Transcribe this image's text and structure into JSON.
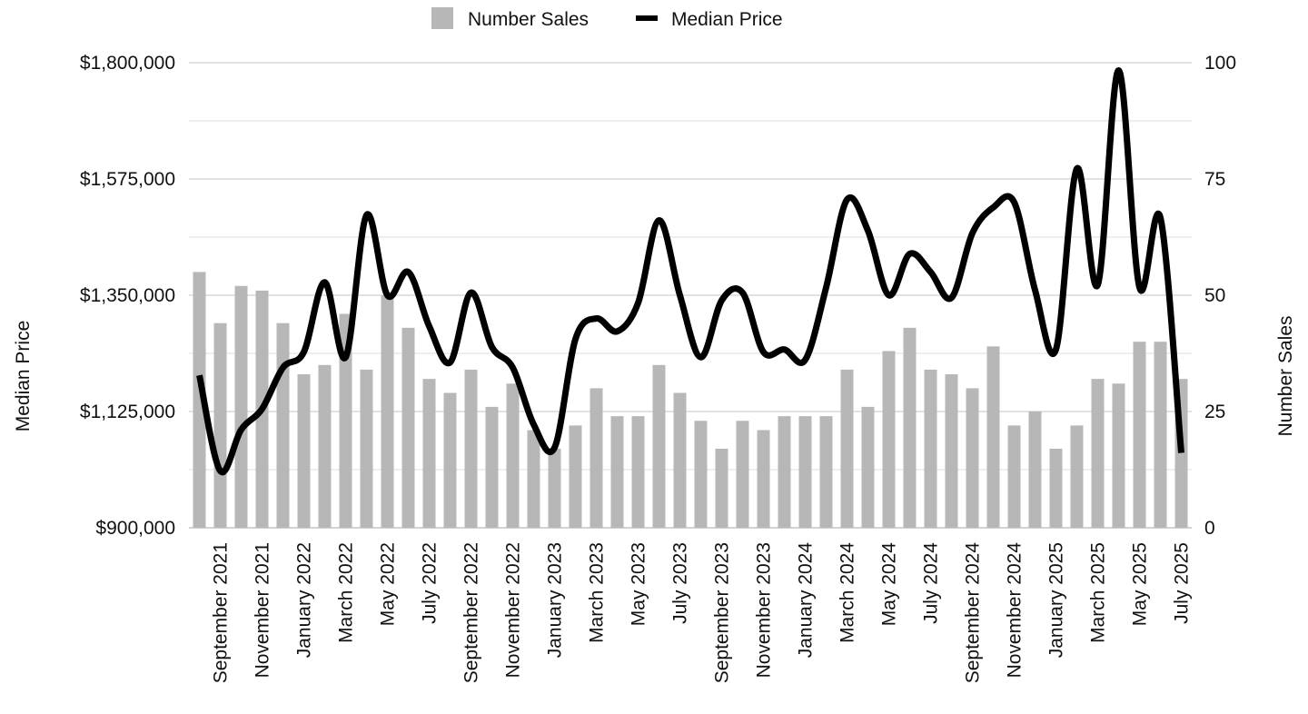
{
  "chart_data": {
    "type": "bar",
    "legend": {
      "position": "top",
      "entries": [
        {
          "label": "Number Sales",
          "color": "#b7b7b7"
        },
        {
          "label": "Median Price",
          "color": "#000000"
        }
      ]
    },
    "y_left": {
      "label": "Median Price",
      "min": 900000,
      "max": 1800000,
      "ticks": [
        900000,
        1125000,
        1350000,
        1575000,
        1800000
      ],
      "tick_labels": [
        "$900,000",
        "$1,125,000",
        "$1,350,000",
        "$1,575,000",
        "$1,800,000"
      ]
    },
    "y_right": {
      "label": "Number Sales",
      "min": 0,
      "max": 100,
      "ticks": [
        0,
        25,
        50,
        75,
        100
      ],
      "tick_labels": [
        "0",
        "25",
        "50",
        "75",
        "100"
      ]
    },
    "grid": true,
    "categories": [
      "August 2021",
      "September 2021",
      "October 2021",
      "November 2021",
      "December 2021",
      "January 2022",
      "February 2022",
      "March 2022",
      "April 2022",
      "May 2022",
      "June 2022",
      "July 2022",
      "August 2022",
      "September 2022",
      "October 2022",
      "November 2022",
      "December 2022",
      "January 2023",
      "February 2023",
      "March 2023",
      "April 2023",
      "May 2023",
      "June 2023",
      "July 2023",
      "August 2023",
      "September 2023",
      "October 2023",
      "November 2023",
      "December 2023",
      "January 2024",
      "February 2024",
      "March 2024",
      "April 2024",
      "May 2024",
      "June 2024",
      "July 2024",
      "August 2024",
      "September 2024",
      "October 2024",
      "November 2024",
      "December 2024",
      "January 2025",
      "February 2025",
      "March 2025",
      "April 2025",
      "May 2025",
      "June 2025",
      "July 2025"
    ],
    "x_tick_labels": [
      "September 2021",
      "November 2021",
      "January 2022",
      "March 2022",
      "May 2022",
      "July 2022",
      "September 2022",
      "November 2022",
      "January 2023",
      "March 2023",
      "May 2023",
      "July 2023",
      "September 2023",
      "November 2023",
      "January 2024",
      "March 2024",
      "May 2024",
      "July 2024",
      "September 2024",
      "November 2024",
      "January 2025",
      "March 2025",
      "May 2025",
      "July 2025"
    ],
    "series": [
      {
        "name": "Number Sales",
        "type": "bar",
        "axis": "right",
        "color": "#b7b7b7",
        "values": [
          55,
          44,
          52,
          51,
          44,
          33,
          35,
          46,
          34,
          50,
          43,
          32,
          29,
          34,
          26,
          31,
          21,
          17,
          22,
          30,
          24,
          24,
          35,
          29,
          23,
          17,
          23,
          21,
          24,
          24,
          24,
          34,
          26,
          38,
          43,
          34,
          33,
          30,
          39,
          22,
          25,
          17,
          22,
          32,
          31,
          40,
          40,
          32
        ]
      },
      {
        "name": "Median Price",
        "type": "line",
        "axis": "left",
        "color": "#000000",
        "smooth": true,
        "values": [
          1195000,
          1010000,
          1090000,
          1130000,
          1210000,
          1240000,
          1375000,
          1230000,
          1505000,
          1350000,
          1395000,
          1290000,
          1220000,
          1355000,
          1250000,
          1210000,
          1100000,
          1055000,
          1265000,
          1305000,
          1280000,
          1335000,
          1495000,
          1350000,
          1230000,
          1340000,
          1355000,
          1240000,
          1245000,
          1225000,
          1365000,
          1535000,
          1475000,
          1350000,
          1430000,
          1395000,
          1345000,
          1470000,
          1520000,
          1530000,
          1360000,
          1245000,
          1595000,
          1370000,
          1785000,
          1365000,
          1500000,
          1045000
        ]
      }
    ]
  }
}
